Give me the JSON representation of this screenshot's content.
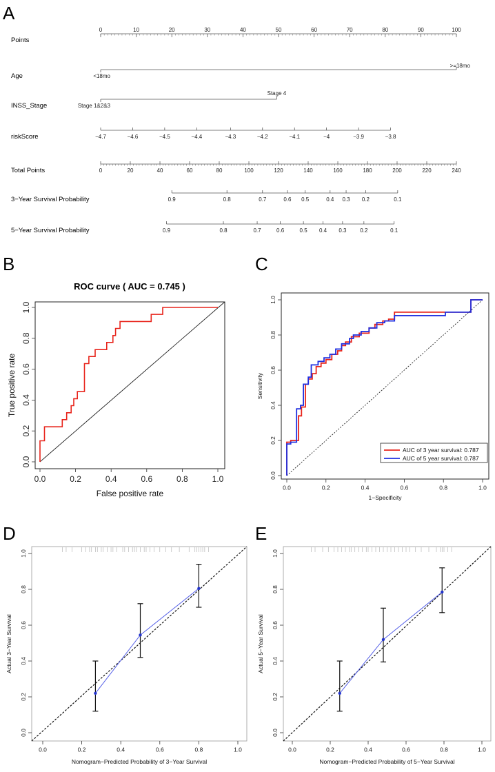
{
  "panel_labels": {
    "a": "A",
    "b": "B",
    "c": "C",
    "d": "D",
    "e": "E"
  },
  "chart_data": [
    {
      "panel": "A",
      "type": "nomogram",
      "rows": [
        {
          "label": "Points",
          "ticks": [
            {
              "value": 0,
              "label": "0"
            },
            {
              "value": 10,
              "label": "10"
            },
            {
              "value": 20,
              "label": "20"
            },
            {
              "value": 30,
              "label": "30"
            },
            {
              "value": 40,
              "label": "40"
            },
            {
              "value": 50,
              "label": "50"
            },
            {
              "value": 60,
              "label": "60"
            },
            {
              "value": 70,
              "label": "70"
            },
            {
              "value": 80,
              "label": "80"
            },
            {
              "value": 90,
              "label": "90"
            },
            {
              "value": 100,
              "label": "100"
            }
          ]
        },
        {
          "label": "Age",
          "ticks": [
            {
              "value": 0,
              "label": "<18mo",
              "side": "below"
            },
            {
              "value": 100,
              "label": ">=18mo",
              "side": "above"
            }
          ]
        },
        {
          "label": "INSS_Stage",
          "ticks": [
            {
              "value": 0,
              "label": "Stage 1&2&3",
              "side": "below"
            },
            {
              "value": 49.5,
              "label": "Stage 4",
              "side": "above"
            }
          ]
        },
        {
          "label": "riskScore",
          "ticks": [
            {
              "value": 0,
              "label": "−4.7"
            },
            {
              "value": 9,
              "label": "−4.6"
            },
            {
              "value": 18,
              "label": "−4.5"
            },
            {
              "value": 27,
              "label": "−4.4"
            },
            {
              "value": 36.5,
              "label": "−4.3"
            },
            {
              "value": 45.5,
              "label": "−4.2"
            },
            {
              "value": 54.5,
              "label": "−4.1"
            },
            {
              "value": 63.5,
              "label": "−4"
            },
            {
              "value": 72.5,
              "label": "−3.9"
            },
            {
              "value": 81.5,
              "label": "−3.8"
            }
          ]
        },
        {
          "label": "Total Points",
          "ticks": [
            {
              "value": 0,
              "label": "0"
            },
            {
              "value": 8.33,
              "label": "20"
            },
            {
              "value": 16.67,
              "label": "40"
            },
            {
              "value": 25,
              "label": "60"
            },
            {
              "value": 33.33,
              "label": "80"
            },
            {
              "value": 41.67,
              "label": "100"
            },
            {
              "value": 50,
              "label": "120"
            },
            {
              "value": 58.33,
              "label": "140"
            },
            {
              "value": 66.67,
              "label": "160"
            },
            {
              "value": 75,
              "label": "180"
            },
            {
              "value": 83.33,
              "label": "200"
            },
            {
              "value": 91.67,
              "label": "220"
            },
            {
              "value": 100,
              "label": "240"
            }
          ]
        },
        {
          "label": "3−Year Survival Probability",
          "ticks": [
            {
              "value": 20,
              "label": "0.9"
            },
            {
              "value": 35.5,
              "label": "0.8"
            },
            {
              "value": 45.5,
              "label": "0.7"
            },
            {
              "value": 52.5,
              "label": "0.6"
            },
            {
              "value": 57.5,
              "label": "0.5"
            },
            {
              "value": 64.5,
              "label": "0.4"
            },
            {
              "value": 69,
              "label": "0.3"
            },
            {
              "value": 74.5,
              "label": "0.2"
            },
            {
              "value": 83.5,
              "label": "0.1"
            }
          ]
        },
        {
          "label": "5−Year Survival Probability",
          "ticks": [
            {
              "value": 18.5,
              "label": "0.9"
            },
            {
              "value": 34.5,
              "label": "0.8"
            },
            {
              "value": 44,
              "label": "0.7"
            },
            {
              "value": 50.5,
              "label": "0.6"
            },
            {
              "value": 57,
              "label": "0.5"
            },
            {
              "value": 62.5,
              "label": "0.4"
            },
            {
              "value": 68,
              "label": "0.3"
            },
            {
              "value": 74,
              "label": "0.2"
            },
            {
              "value": 82.5,
              "label": "0.1"
            }
          ]
        }
      ]
    },
    {
      "panel": "B",
      "type": "line",
      "title": "ROC curve ( AUC =  0.745 )",
      "xlabel": "False positive rate",
      "ylabel": "True positive rate",
      "xlim": [
        0,
        1
      ],
      "ylim": [
        0,
        1
      ],
      "xticks": [
        "0.0",
        "0.2",
        "0.4",
        "0.6",
        "0.8",
        "1.0"
      ],
      "yticks": [
        "0.0",
        "0.2",
        "0.4",
        "0.6",
        "0.8",
        "1.0"
      ],
      "roc": [
        [
          0,
          0
        ],
        [
          0,
          0.136
        ],
        [
          0.025,
          0.136
        ],
        [
          0.025,
          0.227
        ],
        [
          0.125,
          0.227
        ],
        [
          0.125,
          0.273
        ],
        [
          0.15,
          0.273
        ],
        [
          0.15,
          0.318
        ],
        [
          0.175,
          0.318
        ],
        [
          0.175,
          0.364
        ],
        [
          0.19,
          0.364
        ],
        [
          0.19,
          0.409
        ],
        [
          0.21,
          0.409
        ],
        [
          0.21,
          0.455
        ],
        [
          0.25,
          0.455
        ],
        [
          0.25,
          0.636
        ],
        [
          0.275,
          0.636
        ],
        [
          0.275,
          0.682
        ],
        [
          0.31,
          0.682
        ],
        [
          0.31,
          0.727
        ],
        [
          0.375,
          0.727
        ],
        [
          0.375,
          0.773
        ],
        [
          0.41,
          0.773
        ],
        [
          0.41,
          0.818
        ],
        [
          0.425,
          0.818
        ],
        [
          0.425,
          0.864
        ],
        [
          0.45,
          0.864
        ],
        [
          0.45,
          0.909
        ],
        [
          0.625,
          0.909
        ],
        [
          0.625,
          0.955
        ],
        [
          0.69,
          0.955
        ],
        [
          0.69,
          1
        ],
        [
          1,
          1
        ]
      ],
      "series_color": "#e8241b"
    },
    {
      "panel": "C",
      "type": "line",
      "xlabel": "1−Specificity",
      "ylabel": "Sensitivity",
      "xlim": [
        0,
        1
      ],
      "ylim": [
        0,
        1
      ],
      "xticks": [
        "0.0",
        "0.2",
        "0.4",
        "0.6",
        "0.8",
        "1.0"
      ],
      "yticks": [
        "0.0",
        "0.2",
        "0.4",
        "0.6",
        "0.8",
        "1.0"
      ],
      "legend_position": "bottom-right",
      "series": [
        {
          "name": "AUC of 3 year survival:  0.787",
          "color": "#e8241b",
          "points": [
            [
              0,
              0
            ],
            [
              0,
              0.19
            ],
            [
              0.02,
              0.19
            ],
            [
              0.02,
              0.2
            ],
            [
              0.06,
              0.2
            ],
            [
              0.06,
              0.34
            ],
            [
              0.075,
              0.34
            ],
            [
              0.075,
              0.39
            ],
            [
              0.095,
              0.39
            ],
            [
              0.095,
              0.52
            ],
            [
              0.11,
              0.52
            ],
            [
              0.11,
              0.55
            ],
            [
              0.13,
              0.55
            ],
            [
              0.13,
              0.58
            ],
            [
              0.15,
              0.58
            ],
            [
              0.15,
              0.62
            ],
            [
              0.175,
              0.62
            ],
            [
              0.175,
              0.64
            ],
            [
              0.2,
              0.64
            ],
            [
              0.2,
              0.66
            ],
            [
              0.23,
              0.66
            ],
            [
              0.23,
              0.69
            ],
            [
              0.26,
              0.69
            ],
            [
              0.26,
              0.71
            ],
            [
              0.28,
              0.71
            ],
            [
              0.28,
              0.74
            ],
            [
              0.3,
              0.74
            ],
            [
              0.3,
              0.76
            ],
            [
              0.33,
              0.76
            ],
            [
              0.33,
              0.79
            ],
            [
              0.37,
              0.79
            ],
            [
              0.37,
              0.81
            ],
            [
              0.42,
              0.81
            ],
            [
              0.42,
              0.84
            ],
            [
              0.45,
              0.84
            ],
            [
              0.45,
              0.86
            ],
            [
              0.49,
              0.86
            ],
            [
              0.49,
              0.88
            ],
            [
              0.52,
              0.88
            ],
            [
              0.52,
              0.89
            ],
            [
              0.55,
              0.89
            ],
            [
              0.55,
              0.93
            ],
            [
              0.94,
              0.93
            ],
            [
              0.94,
              1
            ],
            [
              1,
              1
            ]
          ]
        },
        {
          "name": "AUC of 5 year survival:  0.787",
          "color": "#1f2fe0",
          "points": [
            [
              0,
              0
            ],
            [
              0,
              0.18
            ],
            [
              0.02,
              0.18
            ],
            [
              0.02,
              0.19
            ],
            [
              0.05,
              0.19
            ],
            [
              0.05,
              0.38
            ],
            [
              0.07,
              0.38
            ],
            [
              0.07,
              0.4
            ],
            [
              0.085,
              0.4
            ],
            [
              0.085,
              0.52
            ],
            [
              0.11,
              0.52
            ],
            [
              0.11,
              0.56
            ],
            [
              0.125,
              0.56
            ],
            [
              0.125,
              0.63
            ],
            [
              0.16,
              0.63
            ],
            [
              0.16,
              0.65
            ],
            [
              0.19,
              0.65
            ],
            [
              0.19,
              0.67
            ],
            [
              0.22,
              0.67
            ],
            [
              0.22,
              0.69
            ],
            [
              0.25,
              0.69
            ],
            [
              0.25,
              0.72
            ],
            [
              0.28,
              0.72
            ],
            [
              0.28,
              0.75
            ],
            [
              0.32,
              0.75
            ],
            [
              0.32,
              0.78
            ],
            [
              0.34,
              0.78
            ],
            [
              0.34,
              0.8
            ],
            [
              0.38,
              0.8
            ],
            [
              0.38,
              0.82
            ],
            [
              0.42,
              0.82
            ],
            [
              0.42,
              0.84
            ],
            [
              0.46,
              0.84
            ],
            [
              0.46,
              0.87
            ],
            [
              0.5,
              0.87
            ],
            [
              0.5,
              0.88
            ],
            [
              0.55,
              0.88
            ],
            [
              0.55,
              0.91
            ],
            [
              0.81,
              0.91
            ],
            [
              0.81,
              0.93
            ],
            [
              0.94,
              0.93
            ],
            [
              0.94,
              1
            ],
            [
              1,
              1
            ]
          ]
        }
      ]
    },
    {
      "panel": "D",
      "type": "calibration",
      "xlabel": "Nomogram−Predicted Probability of 3−Year Survival",
      "ylabel": "Actual 3−Year Survival",
      "xlim": [
        0,
        1
      ],
      "ylim": [
        0,
        1
      ],
      "xticks": [
        "0.0",
        "0.2",
        "0.4",
        "0.6",
        "0.8",
        "1.0"
      ],
      "yticks": [
        "0.0",
        "0.2",
        "0.4",
        "0.6",
        "0.8",
        "1.0"
      ],
      "points": [
        {
          "x": 0.27,
          "y": 0.22,
          "low": 0.12,
          "high": 0.4
        },
        {
          "x": 0.5,
          "y": 0.545,
          "low": 0.42,
          "high": 0.72
        },
        {
          "x": 0.8,
          "y": 0.805,
          "low": 0.7,
          "high": 0.94
        }
      ],
      "rug": [
        0.1,
        0.12,
        0.15,
        0.2,
        0.22,
        0.24,
        0.25,
        0.27,
        0.28,
        0.3,
        0.31,
        0.33,
        0.35,
        0.36,
        0.38,
        0.41,
        0.42,
        0.44,
        0.46,
        0.47,
        0.48,
        0.5,
        0.52,
        0.53,
        0.55,
        0.57,
        0.6,
        0.63,
        0.66,
        0.7,
        0.75,
        0.78,
        0.79,
        0.8,
        0.81,
        0.82,
        0.83,
        0.85
      ]
    },
    {
      "panel": "E",
      "type": "calibration",
      "xlabel": "Nomogram−Predicted Probability of 5−Year Survival",
      "ylabel": "Actual 5−Year Survival",
      "xlim": [
        0,
        1
      ],
      "ylim": [
        0,
        1
      ],
      "xticks": [
        "0.0",
        "0.2",
        "0.4",
        "0.6",
        "0.8",
        "1.0"
      ],
      "yticks": [
        "0.0",
        "0.2",
        "0.4",
        "0.6",
        "0.8",
        "1.0"
      ],
      "points": [
        {
          "x": 0.25,
          "y": 0.22,
          "low": 0.12,
          "high": 0.4
        },
        {
          "x": 0.48,
          "y": 0.52,
          "low": 0.395,
          "high": 0.695
        },
        {
          "x": 0.79,
          "y": 0.785,
          "low": 0.67,
          "high": 0.92
        }
      ],
      "rug": [
        0.1,
        0.12,
        0.16,
        0.19,
        0.22,
        0.24,
        0.26,
        0.28,
        0.3,
        0.31,
        0.33,
        0.35,
        0.37,
        0.39,
        0.4,
        0.42,
        0.44,
        0.46,
        0.48,
        0.5,
        0.52,
        0.54,
        0.56,
        0.58,
        0.6,
        0.62,
        0.65,
        0.68,
        0.72,
        0.76,
        0.78,
        0.79,
        0.8,
        0.82,
        0.84
      ]
    }
  ]
}
